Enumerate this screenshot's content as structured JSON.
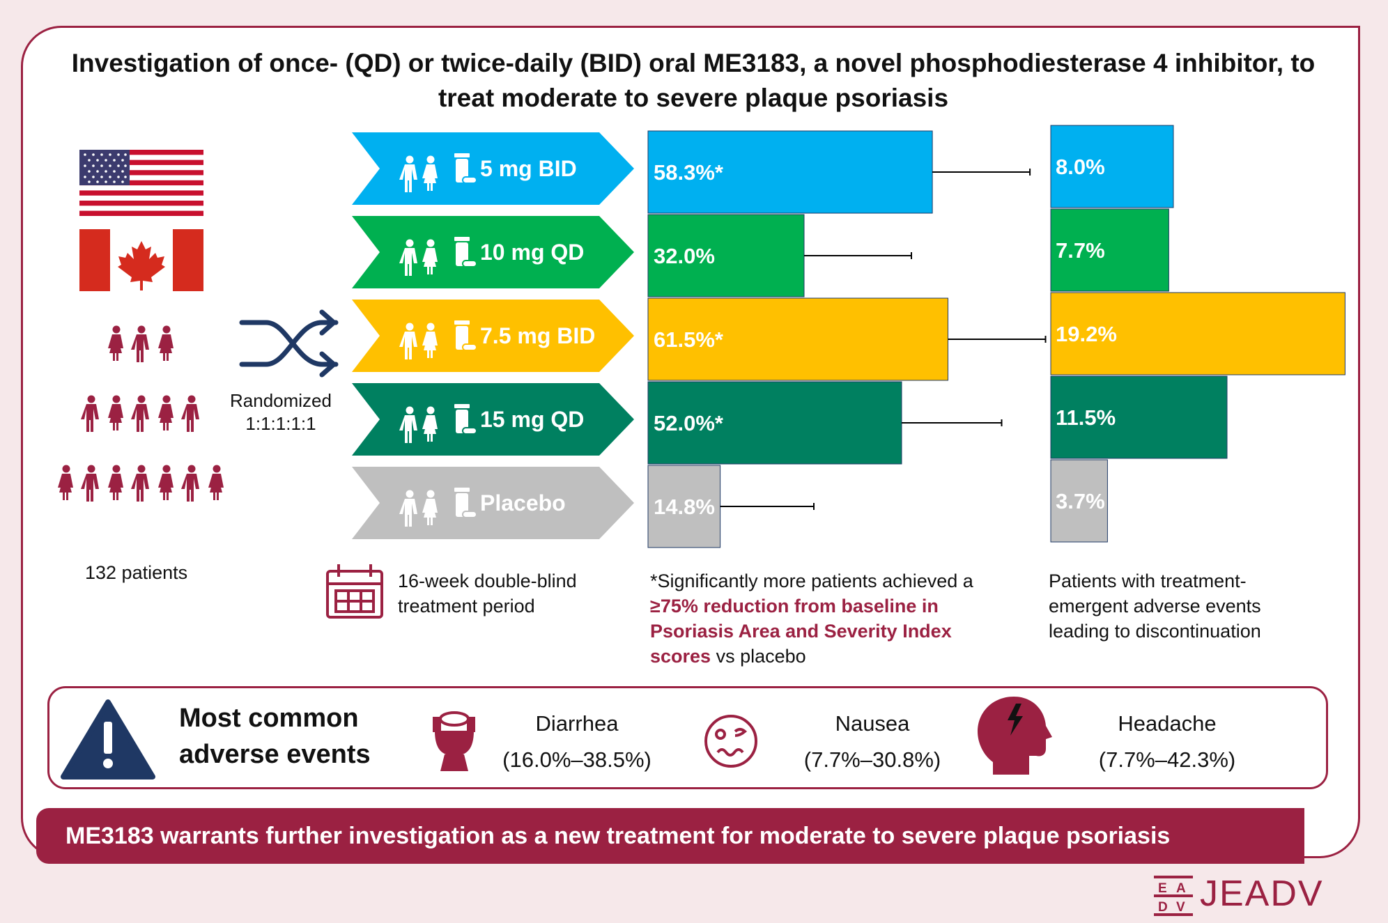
{
  "title": "Investigation of once- (QD) or twice-daily (BID) oral ME3183, a novel phosphodiesterase 4 inhibitor, to treat moderate to severe plaque psoriasis",
  "patients_label": "132 patients",
  "randomized_label": "Randomized",
  "randomized_ratio": "1:1:1:1:1",
  "treatment_period": "16-week double-blind treatment period",
  "pasi_note": {
    "prefix": "*Significantly more patients achieved a ",
    "highlight": "≥75% reduction from baseline in Psoriasis Area and Severity Index scores",
    "suffix": " vs placebo"
  },
  "teae_note": "Patients with treatment-emergent adverse events leading to discontinuation",
  "colors": {
    "brand": "#9b2142",
    "blue": "#00b0f0",
    "green": "#00b050",
    "yellow": "#ffc000",
    "teal": "#008060",
    "grey": "#bfbfbf"
  },
  "chart_data": [
    {
      "type": "bar",
      "orientation": "horizontal",
      "title": "PASI 75 response",
      "categories": [
        "5 mg BID",
        "10 mg QD",
        "7.5 mg BID",
        "15 mg QD",
        "Placebo"
      ],
      "values": [
        58.3,
        32.0,
        61.5,
        52.0,
        14.8
      ],
      "labels": [
        "58.3%*",
        "32.0%",
        "61.5%*",
        "52.0%*",
        "14.8%"
      ],
      "error_upper": [
        78.3,
        54.0,
        81.5,
        72.5,
        34.0
      ],
      "xlim": [
        0,
        100
      ],
      "colors": [
        "#00b0f0",
        "#00b050",
        "#ffc000",
        "#008060",
        "#bfbfbf"
      ]
    },
    {
      "type": "bar",
      "orientation": "horizontal",
      "title": "TEAEs leading to discontinuation",
      "categories": [
        "5 mg BID",
        "10 mg QD",
        "7.5 mg BID",
        "15 mg QD",
        "Placebo"
      ],
      "values": [
        8.0,
        7.7,
        19.2,
        11.5,
        3.7
      ],
      "labels": [
        "8.0%",
        "7.7%",
        "19.2%",
        "11.5%",
        "3.7%"
      ],
      "xlim": [
        0,
        20
      ],
      "colors": [
        "#00b0f0",
        "#00b050",
        "#ffc000",
        "#008060",
        "#bfbfbf"
      ]
    }
  ],
  "adverse_events": {
    "title_line1": "Most common",
    "title_line2": "adverse events",
    "items": [
      {
        "name": "Diarrhea",
        "range": "(16.0%–38.5%)",
        "icon": "toilet-icon"
      },
      {
        "name": "Nausea",
        "range": "(7.7%–30.8%)",
        "icon": "nauseous-face-icon"
      },
      {
        "name": "Headache",
        "range": "(7.7%–42.3%)",
        "icon": "headache-icon"
      }
    ]
  },
  "conclusion": "ME3183 warrants further investigation as a new treatment for moderate to severe plaque psoriasis",
  "logo_letters": [
    "E",
    "A",
    "D",
    "V"
  ],
  "logo_text": "JEADV"
}
